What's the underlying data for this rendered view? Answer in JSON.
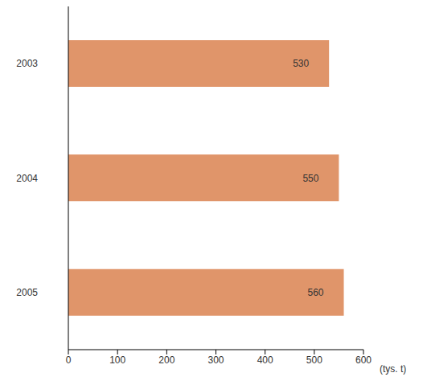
{
  "chart_data": {
    "type": "bar",
    "orientation": "horizontal",
    "categories": [
      "2003",
      "2004",
      "2005"
    ],
    "values": [
      530,
      550,
      560
    ],
    "color": "#e0956a",
    "xlim": [
      0,
      600
    ],
    "xticks": [
      0,
      100,
      200,
      300,
      400,
      500,
      600
    ],
    "x_label": "(tys. t)",
    "data_labels": true,
    "grid": false
  }
}
